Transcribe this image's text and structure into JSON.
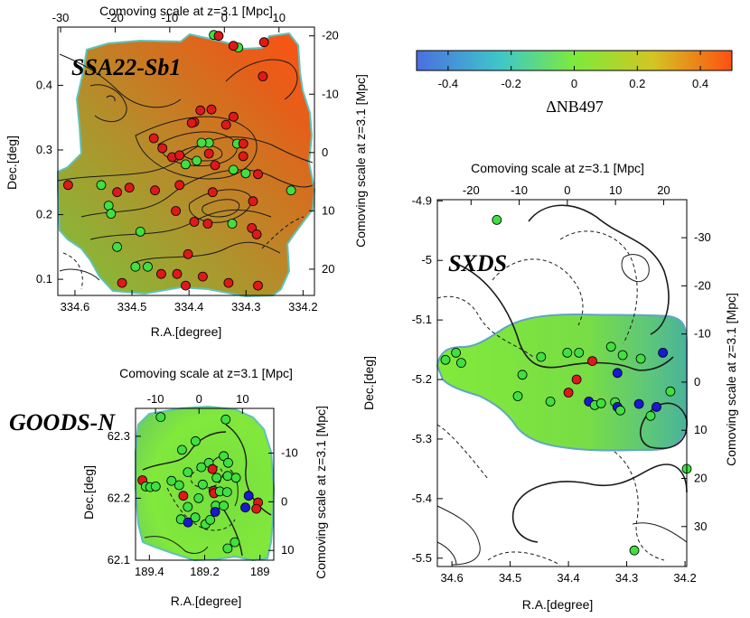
{
  "chart_data": [
    {
      "type": "scatter",
      "name": "SSA22-Sb1",
      "title": "SSA22-Sb1",
      "xlabel": "R.A.[degree]",
      "ylabel": "Dec.[deg]",
      "top_label": "Comoving scale at z=3.1 [Mpc]",
      "right_label": "Comoving scale at z=3.1 [Mpc]",
      "xlim": [
        334.63,
        334.18
      ],
      "ylim": [
        0.075,
        0.49
      ],
      "xticks": [
        334.6,
        334.5,
        334.4,
        334.3,
        334.2
      ],
      "xtick_labels": [
        "334.6",
        "334.5",
        "334.4",
        "334.3",
        "334.2"
      ],
      "yticks": [
        0.1,
        0.2,
        0.3,
        0.4
      ],
      "ytick_labels": [
        "0.1",
        "0.2",
        "0.3",
        "0.4"
      ],
      "top_ticks": [
        -30,
        -20,
        -10,
        0,
        10
      ],
      "top_tick_labels": [
        "-30",
        "-20",
        "-10",
        "0",
        "10"
      ],
      "top_lim": [
        -30.5,
        16.5
      ],
      "right_ticks": [
        -20,
        -10,
        0,
        10,
        20
      ],
      "right_tick_labels": [
        "-20",
        "-10",
        "0",
        "10",
        "20"
      ],
      "right_lim": [
        -21.5,
        24.5
      ],
      "points": [
        {
          "ra": 334.3565,
          "dec": 0.4778,
          "color": "green"
        },
        {
          "ra": 334.3135,
          "dec": 0.4584,
          "color": "green"
        },
        {
          "ra": 334.2684,
          "dec": 0.4667,
          "color": "red"
        },
        {
          "ra": 334.3221,
          "dec": 0.4611,
          "color": "red"
        },
        {
          "ra": 334.3479,
          "dec": 0.4764,
          "color": "red"
        },
        {
          "ra": 334.2705,
          "dec": 0.4139,
          "color": "red"
        },
        {
          "ra": 334.38,
          "dec": 0.3611,
          "color": "red"
        },
        {
          "ra": 334.3606,
          "dec": 0.3625,
          "color": "red"
        },
        {
          "ra": 334.3908,
          "dec": 0.3431,
          "color": "red"
        },
        {
          "ra": 334.3952,
          "dec": 0.3417,
          "color": "red"
        },
        {
          "ra": 334.322,
          "dec": 0.3514,
          "color": "red"
        },
        {
          "ra": 334.335,
          "dec": 0.3389,
          "color": "red"
        },
        {
          "ra": 334.365,
          "dec": 0.3111,
          "color": "green"
        },
        {
          "ra": 334.3779,
          "dec": 0.3111,
          "color": "green"
        },
        {
          "ra": 334.3865,
          "dec": 0.2833,
          "color": "green"
        },
        {
          "ra": 334.3156,
          "dec": 0.3097,
          "color": "green"
        },
        {
          "ra": 334.3049,
          "dec": 0.3097,
          "color": "red"
        },
        {
          "ra": 334.4618,
          "dec": 0.3181,
          "color": "red"
        },
        {
          "ra": 334.4467,
          "dec": 0.3028,
          "color": "red"
        },
        {
          "ra": 334.4295,
          "dec": 0.2889,
          "color": "red"
        },
        {
          "ra": 334.4166,
          "dec": 0.2917,
          "color": "red"
        },
        {
          "ra": 334.365,
          "dec": 0.2944,
          "color": "red"
        },
        {
          "ra": 334.3049,
          "dec": 0.2903,
          "color": "red"
        },
        {
          "ra": 334.4059,
          "dec": 0.2778,
          "color": "green"
        },
        {
          "ra": 334.3543,
          "dec": 0.2764,
          "color": "red"
        },
        {
          "ra": 334.3221,
          "dec": 0.2694,
          "color": "green"
        },
        {
          "ra": 334.3006,
          "dec": 0.2639,
          "color": "green"
        },
        {
          "ra": 334.2791,
          "dec": 0.2625,
          "color": "red"
        },
        {
          "ra": 334.3586,
          "dec": 0.2347,
          "color": "red"
        },
        {
          "ra": 334.4596,
          "dec": 0.2375,
          "color": "red"
        },
        {
          "ra": 334.2877,
          "dec": 0.2208,
          "color": "red"
        },
        {
          "ra": 334.2211,
          "dec": 0.2375,
          "color": "green"
        },
        {
          "ra": 334.612,
          "dec": 0.2458,
          "color": "red"
        },
        {
          "ra": 334.554,
          "dec": 0.2458,
          "color": "green"
        },
        {
          "ra": 334.526,
          "dec": 0.2347,
          "color": "red"
        },
        {
          "ra": 334.541,
          "dec": 0.2139,
          "color": "green"
        },
        {
          "ra": 334.5367,
          "dec": 0.2014,
          "color": "green"
        },
        {
          "ra": 334.5045,
          "dec": 0.2417,
          "color": "red"
        },
        {
          "ra": 334.4166,
          "dec": 0.2458,
          "color": "red"
        },
        {
          "ra": 334.4231,
          "dec": 0.2056,
          "color": "red"
        },
        {
          "ra": 334.3908,
          "dec": 0.1889,
          "color": "red"
        },
        {
          "ra": 334.3672,
          "dec": 0.1861,
          "color": "red"
        },
        {
          "ra": 334.3242,
          "dec": 0.1861,
          "color": "green"
        },
        {
          "ra": 334.4853,
          "dec": 0.1736,
          "color": "green"
        },
        {
          "ra": 334.2898,
          "dec": 0.1792,
          "color": "red"
        },
        {
          "ra": 334.2812,
          "dec": 0.1694,
          "color": "red"
        },
        {
          "ra": 334.526,
          "dec": 0.15,
          "color": "green"
        },
        {
          "ra": 334.4016,
          "dec": 0.1389,
          "color": "red"
        },
        {
          "ra": 334.4939,
          "dec": 0.1194,
          "color": "green"
        },
        {
          "ra": 334.4724,
          "dec": 0.1194,
          "color": "green"
        },
        {
          "ra": 334.4488,
          "dec": 0.1083,
          "color": "red"
        },
        {
          "ra": 334.4209,
          "dec": 0.1083,
          "color": "red"
        },
        {
          "ra": 334.3758,
          "dec": 0.1042,
          "color": "red"
        },
        {
          "ra": 334.3307,
          "dec": 0.0944,
          "color": "red"
        },
        {
          "ra": 334.5174,
          "dec": 0.0944,
          "color": "red"
        },
        {
          "ra": 334.4058,
          "dec": 0.0903,
          "color": "red"
        },
        {
          "ra": 334.2791,
          "dec": 0.0903,
          "color": "red"
        }
      ]
    },
    {
      "type": "scatter",
      "name": "GOODS-N",
      "title": "GOODS-N",
      "xlabel": "R.A.[degree]",
      "ylabel": "Dec.[deg]",
      "top_label": "Comoving scale at z=3.1 [Mpc]",
      "right_label": "Comoving scale at z=3.1 [Mpc]",
      "xlim": [
        189.45,
        188.95
      ],
      "ylim": [
        62.1,
        62.345
      ],
      "xticks": [
        189.4,
        189.2,
        189.0
      ],
      "xtick_labels": [
        "189.4",
        "189.2",
        "189"
      ],
      "yticks": [
        62.1,
        62.2,
        62.3
      ],
      "ytick_labels": [
        "62.1",
        "62.2",
        "62.3"
      ],
      "top_ticks": [
        -10,
        0,
        10
      ],
      "top_tick_labels": [
        "-10",
        "0",
        "10"
      ],
      "top_lim": [
        -14.6,
        17.2
      ],
      "right_ticks": [
        -10,
        0,
        10
      ],
      "right_tick_labels": [
        "-10",
        "0",
        "10"
      ],
      "right_lim": [
        -19.2,
        12.0
      ],
      "points": [
        {
          "ra": 189.359,
          "dec": 62.331,
          "color": "green"
        },
        {
          "ra": 189.124,
          "dec": 62.327,
          "color": "green"
        },
        {
          "ra": 189.233,
          "dec": 62.292,
          "color": "green"
        },
        {
          "ra": 189.282,
          "dec": 62.278,
          "color": "green"
        },
        {
          "ra": 189.185,
          "dec": 62.257,
          "color": "green"
        },
        {
          "ra": 189.131,
          "dec": 62.268,
          "color": "green"
        },
        {
          "ra": 189.115,
          "dec": 62.257,
          "color": "green"
        },
        {
          "ra": 189.261,
          "dec": 62.242,
          "color": "green"
        },
        {
          "ra": 189.212,
          "dec": 62.25,
          "color": "green"
        },
        {
          "ra": 189.172,
          "dec": 62.247,
          "color": "red"
        },
        {
          "ra": 189.157,
          "dec": 62.233,
          "color": "green"
        },
        {
          "ra": 189.117,
          "dec": 62.236,
          "color": "green"
        },
        {
          "ra": 189.087,
          "dec": 62.233,
          "color": "green"
        },
        {
          "ra": 189.425,
          "dec": 62.229,
          "color": "red"
        },
        {
          "ra": 189.413,
          "dec": 62.219,
          "color": "green"
        },
        {
          "ra": 189.397,
          "dec": 62.218,
          "color": "green"
        },
        {
          "ra": 189.377,
          "dec": 62.219,
          "color": "green"
        },
        {
          "ra": 189.32,
          "dec": 62.228,
          "color": "green"
        },
        {
          "ra": 189.292,
          "dec": 62.221,
          "color": "green"
        },
        {
          "ra": 189.207,
          "dec": 62.222,
          "color": "green"
        },
        {
          "ra": 189.168,
          "dec": 62.212,
          "color": "red"
        },
        {
          "ra": 189.166,
          "dec": 62.208,
          "color": "red"
        },
        {
          "ra": 189.145,
          "dec": 62.211,
          "color": "green"
        },
        {
          "ra": 189.119,
          "dec": 62.21,
          "color": "green"
        },
        {
          "ra": 189.041,
          "dec": 62.204,
          "color": "blue"
        },
        {
          "ra": 189.277,
          "dec": 62.204,
          "color": "red"
        },
        {
          "ra": 189.222,
          "dec": 62.2,
          "color": "green"
        },
        {
          "ra": 189.261,
          "dec": 62.186,
          "color": "green"
        },
        {
          "ra": 189.16,
          "dec": 62.188,
          "color": "green"
        },
        {
          "ra": 189.131,
          "dec": 62.188,
          "color": "green"
        },
        {
          "ra": 189.007,
          "dec": 62.193,
          "color": "red"
        },
        {
          "ra": 189.013,
          "dec": 62.183,
          "color": "red"
        },
        {
          "ra": 189.053,
          "dec": 62.185,
          "color": "blue"
        },
        {
          "ra": 189.162,
          "dec": 62.178,
          "color": "blue"
        },
        {
          "ra": 189.234,
          "dec": 62.169,
          "color": "green"
        },
        {
          "ra": 189.286,
          "dec": 62.166,
          "color": "green"
        },
        {
          "ra": 189.26,
          "dec": 62.161,
          "color": "blue"
        },
        {
          "ra": 189.197,
          "dec": 62.158,
          "color": "green"
        },
        {
          "ra": 189.18,
          "dec": 62.165,
          "color": "green"
        },
        {
          "ra": 189.091,
          "dec": 62.129,
          "color": "green"
        },
        {
          "ra": 189.117,
          "dec": 62.119,
          "color": "green"
        }
      ]
    },
    {
      "type": "scatter",
      "name": "SXDS",
      "title": "SXDS",
      "xlabel": "R.A.[degree]",
      "ylabel": "Dec.[deg]",
      "top_label": "Comoving scale at z=3.1 [Mpc]",
      "right_label": "Comoving scale at z=3.1 [Mpc]",
      "xlim": [
        34.625,
        34.197
      ],
      "ylim": [
        -5.514,
        -4.898
      ],
      "xticks": [
        34.6,
        34.5,
        34.4,
        34.3,
        34.2
      ],
      "xtick_labels": [
        "34.6",
        "34.5",
        "34.4",
        "34.3",
        "34.2"
      ],
      "yticks": [
        -5.5,
        -5.4,
        -5.3,
        -5.2,
        -5.1,
        -5.0,
        -4.9
      ],
      "ytick_labels": [
        "-5.5",
        "-5.4",
        "-5.3",
        "-5.2",
        "-5.1",
        "-5",
        "-4.9"
      ],
      "top_ticks": [
        -20,
        -10,
        0,
        10,
        20
      ],
      "top_tick_labels": [
        "-20",
        "-10",
        "0",
        "10",
        "20"
      ],
      "top_lim": [
        -27.0,
        24.8
      ],
      "right_ticks": [
        -30,
        -20,
        -10,
        0,
        10,
        20,
        30
      ],
      "right_tick_labels": [
        "-30",
        "-20",
        "-10",
        "0",
        "10",
        "20",
        "30"
      ],
      "right_lim": [
        -37.9,
        38.3
      ],
      "points": [
        {
          "ra": 34.523,
          "dec": -4.932,
          "color": "green"
        },
        {
          "ra": 34.593,
          "dec": -5.155,
          "color": "green"
        },
        {
          "ra": 34.611,
          "dec": -5.167,
          "color": "green"
        },
        {
          "ra": 34.584,
          "dec": -5.172,
          "color": "green"
        },
        {
          "ra": 34.447,
          "dec": -5.162,
          "color": "green"
        },
        {
          "ra": 34.402,
          "dec": -5.155,
          "color": "green"
        },
        {
          "ra": 34.382,
          "dec": -5.155,
          "color": "green"
        },
        {
          "ra": 34.327,
          "dec": -5.145,
          "color": "green"
        },
        {
          "ra": 34.307,
          "dec": -5.159,
          "color": "green"
        },
        {
          "ra": 34.276,
          "dec": -5.165,
          "color": "green"
        },
        {
          "ra": 34.238,
          "dec": -5.155,
          "color": "blue"
        },
        {
          "ra": 34.359,
          "dec": -5.169,
          "color": "red"
        },
        {
          "ra": 34.479,
          "dec": -5.192,
          "color": "green"
        },
        {
          "ra": 34.386,
          "dec": -5.2,
          "color": "red"
        },
        {
          "ra": 34.316,
          "dec": -5.189,
          "color": "blue"
        },
        {
          "ra": 34.4,
          "dec": -5.222,
          "color": "red"
        },
        {
          "ra": 34.487,
          "dec": -5.228,
          "color": "green"
        },
        {
          "ra": 34.431,
          "dec": -5.237,
          "color": "green"
        },
        {
          "ra": 34.365,
          "dec": -5.237,
          "color": "blue"
        },
        {
          "ra": 34.355,
          "dec": -5.243,
          "color": "green"
        },
        {
          "ra": 34.344,
          "dec": -5.24,
          "color": "green"
        },
        {
          "ra": 34.32,
          "dec": -5.238,
          "color": "green"
        },
        {
          "ra": 34.316,
          "dec": -5.246,
          "color": "blue"
        },
        {
          "ra": 34.311,
          "dec": -5.252,
          "color": "green"
        },
        {
          "ra": 34.279,
          "dec": -5.241,
          "color": "blue"
        },
        {
          "ra": 34.249,
          "dec": -5.246,
          "color": "blue"
        },
        {
          "ra": 34.225,
          "dec": -5.22,
          "color": "green"
        },
        {
          "ra": 34.259,
          "dec": -5.261,
          "color": "green"
        },
        {
          "ra": 34.197,
          "dec": -5.35,
          "color": "green"
        },
        {
          "ra": 34.287,
          "dec": -5.487,
          "color": "green"
        }
      ]
    },
    {
      "type": "colorbar",
      "label": "ΔNB497",
      "vlim": [
        -0.5,
        0.5
      ],
      "ticks": [
        -0.4,
        -0.2,
        0,
        0.2,
        0.4
      ],
      "tick_labels": [
        "-0.4",
        "-0.2",
        "0",
        "0.2",
        "0.4"
      ],
      "colors": [
        "#4a6fe0",
        "#3fc8c8",
        "#7dea3c",
        "#d3c522",
        "#ff5012"
      ]
    }
  ],
  "marker_colors": {
    "red": "#e01818",
    "green": "#3fe03f",
    "blue": "#1818d8"
  }
}
